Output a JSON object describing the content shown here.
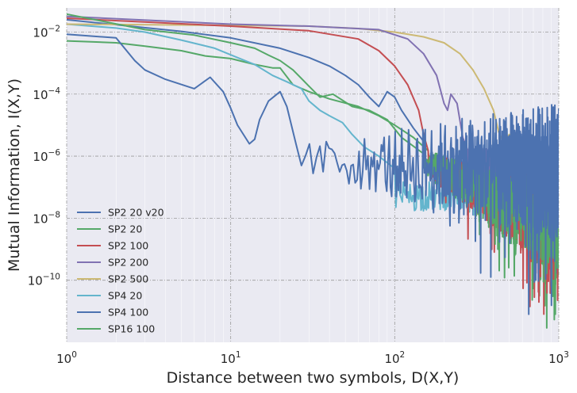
{
  "chart_data": {
    "type": "line",
    "xlabel": "Distance between two symbols, D(X,Y)",
    "ylabel": "Mutual Information, I(X,Y)",
    "xscale": "log",
    "yscale": "log",
    "xlim": [
      1,
      1000
    ],
    "ylim": [
      1e-12,
      0.06
    ],
    "grid": true,
    "legend_position": "lower-left",
    "x_ticks": [
      {
        "value": 1,
        "base": "10",
        "exp": "0"
      },
      {
        "value": 10,
        "base": "10",
        "exp": "1"
      },
      {
        "value": 100,
        "base": "10",
        "exp": "2"
      },
      {
        "value": 1000,
        "base": "10",
        "exp": "3"
      }
    ],
    "y_ticks": [
      {
        "value": 1e-10,
        "base": "10",
        "exp": "−10"
      },
      {
        "value": 1e-08,
        "base": "10",
        "exp": "−8"
      },
      {
        "value": 1e-06,
        "base": "10",
        "exp": "−6"
      },
      {
        "value": 0.0001,
        "base": "10",
        "exp": "−4"
      },
      {
        "value": 0.01,
        "base": "10",
        "exp": "−2"
      }
    ],
    "series": [
      {
        "name": "SP2 20 v20",
        "color": "#4c72b0",
        "points": [
          [
            1,
            0.0085
          ],
          [
            2,
            0.0065
          ],
          [
            2.6,
            0.0012
          ],
          [
            3,
            0.0006
          ],
          [
            4,
            0.0003
          ],
          [
            6,
            0.00015
          ],
          [
            7.5,
            0.00035
          ],
          [
            9,
            0.00012
          ],
          [
            10,
            3.5e-05
          ],
          [
            11,
            1e-05
          ],
          [
            13,
            2.5e-06
          ],
          [
            14,
            3.5e-06
          ],
          [
            15,
            1.5e-05
          ],
          [
            17,
            6e-05
          ],
          [
            20,
            0.00012
          ],
          [
            22,
            4e-05
          ],
          [
            25,
            2.5e-06
          ],
          [
            27,
            5e-07
          ]
        ],
        "noise": {
          "x_start": 27,
          "x_end": 1000,
          "log_center_start": -6.1,
          "log_center_end": -6.5,
          "amplitude_start": 0.5,
          "amplitude_end": 2.2,
          "dips": 0.15
        }
      },
      {
        "name": "SP2 20",
        "color": "#55a868",
        "points": [
          [
            1,
            0.038
          ],
          [
            3,
            0.012
          ],
          [
            6,
            0.008
          ],
          [
            10,
            0.0045
          ],
          [
            14,
            0.003
          ],
          [
            17,
            0.0018
          ],
          [
            20,
            0.0012
          ],
          [
            24,
            0.0006
          ],
          [
            30,
            0.00018
          ],
          [
            35,
            8e-05
          ],
          [
            42,
            0.0001
          ],
          [
            55,
            4e-05
          ],
          [
            70,
            3e-05
          ],
          [
            90,
            1.5e-05
          ],
          [
            110,
            4e-06
          ],
          [
            150,
            1.2e-06
          ]
        ],
        "noise": {
          "x_start": 150,
          "x_end": 1000,
          "log_center_start": -6.2,
          "log_center_end": -8.2,
          "amplitude_start": 0.4,
          "amplitude_end": 1.6,
          "dips": 0.12
        }
      },
      {
        "name": "SP2 100",
        "color": "#c44e52",
        "points": [
          [
            1,
            0.028
          ],
          [
            10,
            0.0155
          ],
          [
            30,
            0.011
          ],
          [
            60,
            0.006
          ],
          [
            80,
            0.0025
          ],
          [
            100,
            0.0008
          ],
          [
            120,
            0.0002
          ],
          [
            140,
            3e-05
          ],
          [
            150,
            5e-06
          ],
          [
            160,
            1.5e-06
          ]
        ],
        "noise": {
          "x_start": 160,
          "x_end": 1000,
          "log_center_start": -6.3,
          "log_center_end": -8.3,
          "amplitude_start": 0.4,
          "amplitude_end": 1.6,
          "dips": 0.22
        }
      },
      {
        "name": "SP2 200",
        "color": "#8172b2",
        "points": [
          [
            1,
            0.032
          ],
          [
            10,
            0.018
          ],
          [
            30,
            0.0155
          ],
          [
            80,
            0.012
          ],
          [
            120,
            0.006
          ],
          [
            150,
            0.002
          ],
          [
            180,
            0.0004
          ],
          [
            200,
            5e-05
          ],
          [
            210,
            3e-05
          ],
          [
            220,
            0.0001
          ],
          [
            240,
            5e-05
          ],
          [
            260,
            4e-06
          ],
          [
            280,
            1.5e-06
          ]
        ],
        "noise": {
          "x_start": 280,
          "x_end": 1000,
          "log_center_start": -6.2,
          "log_center_end": -6.6,
          "amplitude_start": 0.4,
          "amplitude_end": 1.0,
          "dips": 0.1
        }
      },
      {
        "name": "SP2 500",
        "color": "#ccb974",
        "points": [
          [
            1,
            0.018
          ],
          [
            10,
            0.0165
          ],
          [
            30,
            0.0155
          ],
          [
            60,
            0.013
          ],
          [
            100,
            0.01
          ],
          [
            150,
            0.007
          ],
          [
            200,
            0.0045
          ],
          [
            250,
            0.002
          ],
          [
            300,
            0.0006
          ],
          [
            350,
            0.00015
          ],
          [
            400,
            3e-05
          ],
          [
            430,
            6e-06
          ],
          [
            460,
            3e-06
          ],
          [
            500,
            5e-06
          ],
          [
            560,
            3e-06
          ],
          [
            650,
            1.5e-06
          ]
        ],
        "noise": {
          "x_start": 650,
          "x_end": 1000,
          "log_center_start": -6.2,
          "log_center_end": -6.3,
          "amplitude_start": 0.3,
          "amplitude_end": 0.5,
          "dips": 0.05
        }
      },
      {
        "name": "SP4 20",
        "color": "#64b5cd",
        "points": [
          [
            1,
            0.018
          ],
          [
            2,
            0.0135
          ],
          [
            3,
            0.01
          ],
          [
            5,
            0.0055
          ],
          [
            8,
            0.003
          ],
          [
            11,
            0.0015
          ],
          [
            14,
            0.0009
          ],
          [
            18,
            0.0004
          ],
          [
            22,
            0.00025
          ],
          [
            27,
            0.00015
          ],
          [
            30,
            6e-05
          ],
          [
            35,
            3e-05
          ],
          [
            40,
            2e-05
          ],
          [
            48,
            1.2e-05
          ],
          [
            55,
            5e-06
          ],
          [
            65,
            2e-06
          ],
          [
            80,
            1e-06
          ],
          [
            100,
            4e-07
          ]
        ],
        "noise": {
          "x_start": 100,
          "x_end": 1000,
          "log_center_start": -7.3,
          "log_center_end": -7.2,
          "amplitude_start": 0.5,
          "amplitude_end": 0.45,
          "dips": 0.1
        }
      },
      {
        "name": "SP4 100",
        "color": "#4c72b0",
        "points": [
          [
            1,
            0.025
          ],
          [
            5,
            0.0105
          ],
          [
            10,
            0.0065
          ],
          [
            20,
            0.003
          ],
          [
            30,
            0.0015
          ],
          [
            40,
            0.0008
          ],
          [
            50,
            0.0004
          ],
          [
            60,
            0.0002
          ],
          [
            70,
            8e-05
          ],
          [
            80,
            4e-05
          ],
          [
            90,
            0.00012
          ],
          [
            100,
            8e-05
          ],
          [
            110,
            3e-05
          ],
          [
            130,
            8e-06
          ],
          [
            150,
            3e-06
          ]
        ],
        "noise": {
          "x_start": 150,
          "x_end": 1000,
          "log_center_start": -6.2,
          "log_center_end": -6.9,
          "amplitude_start": 0.4,
          "amplitude_end": 1.4,
          "dips": 0.12
        }
      },
      {
        "name": "SP16 100",
        "color": "#55a868",
        "points": [
          [
            1,
            0.0052
          ],
          [
            2,
            0.0045
          ],
          [
            3,
            0.0035
          ],
          [
            5,
            0.0025
          ],
          [
            7,
            0.0017
          ],
          [
            10,
            0.0014
          ],
          [
            14,
            0.0009
          ],
          [
            18,
            0.0007
          ],
          [
            20,
            0.0007
          ],
          [
            24,
            0.0002
          ],
          [
            30,
            0.00012
          ],
          [
            40,
            7e-05
          ],
          [
            60,
            4e-05
          ],
          [
            80,
            2e-05
          ],
          [
            100,
            1e-05
          ],
          [
            130,
            4e-06
          ],
          [
            160,
            1.5e-06
          ]
        ],
        "noise": {
          "x_start": 160,
          "x_end": 1000,
          "log_center_start": -6.4,
          "log_center_end": -8.5,
          "amplitude_start": 0.4,
          "amplitude_end": 1.5,
          "dips": 0.12
        }
      }
    ]
  }
}
